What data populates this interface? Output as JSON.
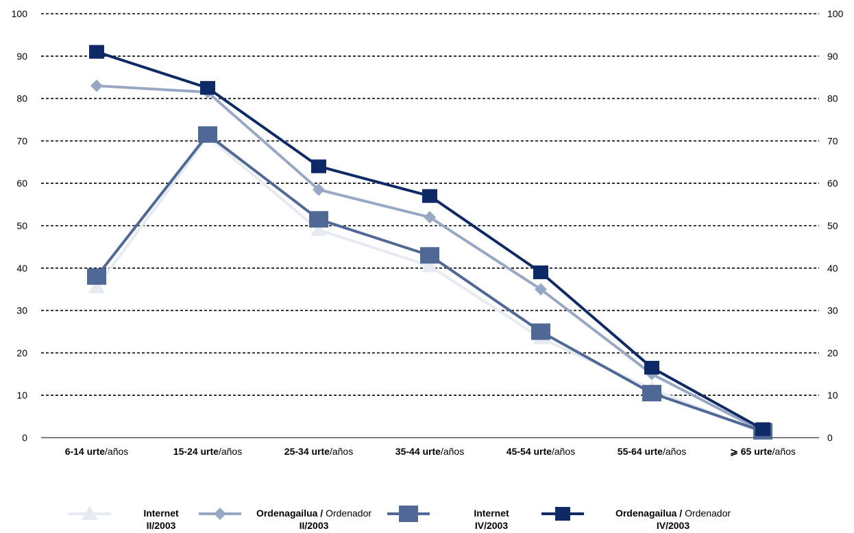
{
  "chart_data": {
    "type": "line",
    "categories": [
      {
        "bold": "6-14 urte",
        "rest": "/años"
      },
      {
        "bold": "15-24 urte",
        "rest": "/años"
      },
      {
        "bold": "25-34 urte",
        "rest": "/años"
      },
      {
        "bold": "35-44 urte",
        "rest": "/años"
      },
      {
        "bold": "45-54 urte",
        "rest": "/años"
      },
      {
        "bold": "55-64 urte",
        "rest": "/años"
      },
      {
        "bold": "⩾ 65 urte",
        "rest": "/años"
      }
    ],
    "ylim": [
      0,
      100
    ],
    "yticks": [
      "0",
      "10",
      "20",
      "30",
      "40",
      "50",
      "60",
      "70",
      "80",
      "90",
      "100"
    ],
    "grid": true,
    "grid_style": "dashed",
    "legend_position": "bottom",
    "series": [
      {
        "key": "internet_ii",
        "label_bold": "Internet",
        "label_rest": "",
        "period": "II/2003",
        "marker": "triangle",
        "color": "#e6ebf2",
        "values": [
          35.5,
          71,
          49,
          40.5,
          23.5,
          11.5,
          1
        ]
      },
      {
        "key": "ordenador_ii",
        "label_bold": "Ordenagailua /",
        "label_rest": " Ordenador",
        "period": "II/2003",
        "marker": "diamond",
        "color": "#98a8c4",
        "values": [
          83,
          81.5,
          58.5,
          52,
          35,
          15,
          1.5
        ]
      },
      {
        "key": "internet_iv",
        "label_bold": "Internet",
        "label_rest": "",
        "period": "IV/2003",
        "marker": "square-large",
        "color": "#4f6895",
        "values": [
          38,
          71.5,
          51.5,
          43,
          25,
          10.5,
          1.5
        ]
      },
      {
        "key": "ordenador_iv",
        "label_bold": "Ordenagailua /",
        "label_rest": " Ordenador",
        "period": "IV/2003",
        "marker": "square",
        "color": "#0d2a66",
        "values": [
          91,
          82.5,
          64,
          57,
          39,
          16.5,
          2
        ]
      }
    ]
  }
}
